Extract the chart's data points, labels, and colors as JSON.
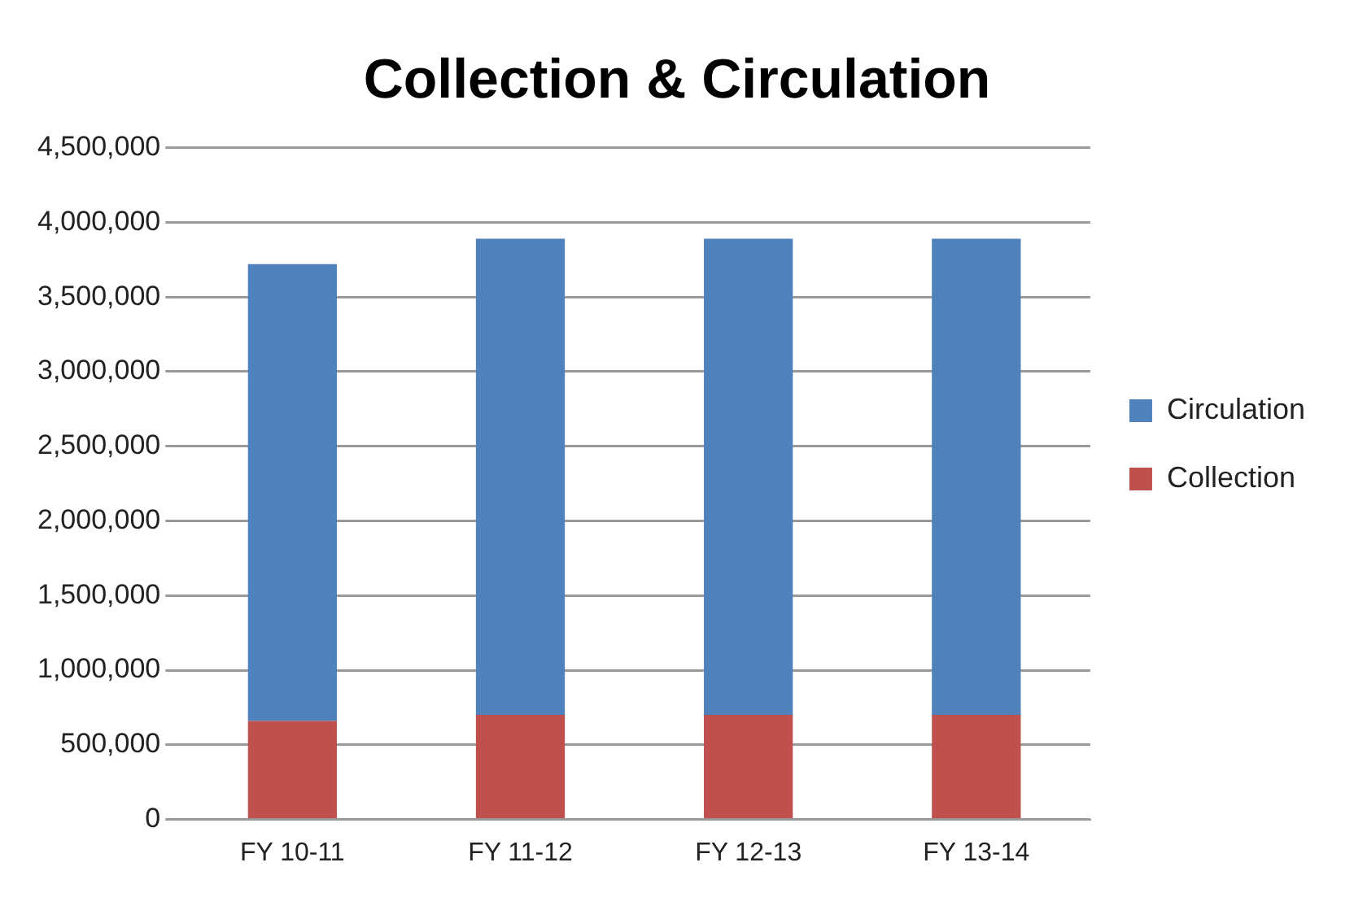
{
  "chart_data": {
    "type": "bar",
    "title": "Collection & Circulation",
    "categories": [
      "FY 10-11",
      "FY 11-12",
      "FY 12-13",
      "FY 13-14"
    ],
    "stacked": true,
    "series": [
      {
        "name": "Collection",
        "color": "#c0504d",
        "values": [
          660000,
          700000,
          700000,
          700000
        ]
      },
      {
        "name": "Circulation",
        "color": "#4f81bd",
        "values": [
          3060000,
          3190000,
          3190000,
          3190000
        ]
      }
    ],
    "ylim": [
      0,
      4500000
    ],
    "yticks": [
      0,
      {
        "value": 500000,
        "label": "500,000"
      },
      {
        "value": 1000000,
        "label": "1,000,000"
      },
      {
        "value": 1500000,
        "label": "1,500,000"
      },
      {
        "value": 2000000,
        "label": "2,000,000"
      },
      {
        "value": 2500000,
        "label": "2,500,000"
      },
      {
        "value": 3000000,
        "label": "3,000,000"
      },
      {
        "value": 3500000,
        "label": "3,500,000"
      },
      {
        "value": 4000000,
        "label": "4,000,000"
      },
      {
        "value": 4500000,
        "label": "4,500,000"
      }
    ],
    "grid": "y",
    "legend": "right"
  }
}
